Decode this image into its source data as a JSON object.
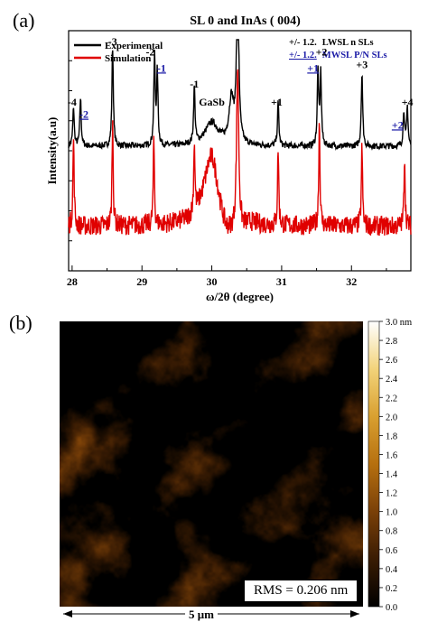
{
  "panel_a": {
    "label": "(a)",
    "chart_data": {
      "type": "line",
      "title": "SL 0  and InAs ( 004)",
      "xlabel": "ω/2θ (degree)",
      "ylabel": "Intensity(a.u)",
      "xlim": [
        27.95,
        32.85
      ],
      "x_ticks": [
        "28",
        "29",
        "30",
        "31",
        "32"
      ],
      "legend": {
        "position": "top-left",
        "entries": [
          "Experimental",
          "Simulation"
        ]
      },
      "key_lines": [
        {
          "prefix": "+/- 1.2.",
          "text": "LWSL n SLs",
          "color": "#000000"
        },
        {
          "prefix": "+/- 1.2.",
          "text": "MWSL P/N SLs",
          "color": "#1a1aa6"
        }
      ],
      "series": [
        {
          "name": "Experimental",
          "color": "#000000",
          "baseline": 0.7,
          "noise": 0.035,
          "peaks": [
            [
              28.02,
              0.22,
              0.012
            ],
            [
              28.12,
              0.27,
              0.012
            ],
            [
              28.58,
              0.56,
              0.012
            ],
            [
              29.18,
              0.5,
              0.012
            ],
            [
              29.22,
              0.4,
              0.012
            ],
            [
              29.75,
              0.32,
              0.012
            ],
            [
              30.0,
              0.13,
              0.12
            ],
            [
              30.37,
              1.0,
              0.018
            ],
            [
              30.28,
              0.25,
              0.04
            ],
            [
              30.95,
              0.24,
              0.012
            ],
            [
              31.52,
              0.42,
              0.012
            ],
            [
              31.56,
              0.4,
              0.012
            ],
            [
              32.15,
              0.42,
              0.012
            ],
            [
              32.75,
              0.2,
              0.012
            ],
            [
              32.8,
              0.22,
              0.012
            ]
          ]
        },
        {
          "name": "Simulation",
          "color": "#e00000",
          "baseline": 0.25,
          "noise": 0.07,
          "peaks": [
            [
              28.02,
              0.5,
              0.01
            ],
            [
              28.58,
              0.58,
              0.01
            ],
            [
              29.17,
              0.48,
              0.01
            ],
            [
              29.75,
              0.4,
              0.01
            ],
            [
              30.0,
              0.44,
              0.13
            ],
            [
              30.37,
              0.92,
              0.018
            ],
            [
              30.95,
              0.44,
              0.01
            ],
            [
              31.54,
              0.6,
              0.01
            ],
            [
              32.15,
              0.45,
              0.01
            ],
            [
              32.76,
              0.4,
              0.01
            ]
          ]
        }
      ],
      "annotations": [
        {
          "text": "-4",
          "x": 28.0,
          "y": 0.93,
          "color": "#000000",
          "underline": false
        },
        {
          "text": "-2",
          "x": 28.17,
          "y": 0.86,
          "color": "#1a1aa6",
          "underline": true
        },
        {
          "text": "-3",
          "x": 28.58,
          "y": 1.27,
          "color": "#000000",
          "underline": false
        },
        {
          "text": "-2",
          "x": 29.12,
          "y": 1.21,
          "color": "#000000",
          "underline": false
        },
        {
          "text": "-1",
          "x": 29.28,
          "y": 1.12,
          "color": "#1a1aa6",
          "underline": true
        },
        {
          "text": "-1",
          "x": 29.75,
          "y": 1.03,
          "color": "#000000",
          "underline": false
        },
        {
          "text": "GaSb",
          "x": 30.0,
          "y": 0.93,
          "color": "#000000",
          "underline": false
        },
        {
          "text": "+1",
          "x": 30.93,
          "y": 0.93,
          "color": "#000000",
          "underline": false
        },
        {
          "text": "+1",
          "x": 31.45,
          "y": 1.12,
          "color": "#1a1aa6",
          "underline": true
        },
        {
          "text": "+2",
          "x": 31.57,
          "y": 1.21,
          "color": "#000000",
          "underline": false
        },
        {
          "text": "+3",
          "x": 32.15,
          "y": 1.14,
          "color": "#000000",
          "underline": false
        },
        {
          "text": "+4",
          "x": 32.8,
          "y": 0.93,
          "color": "#000000",
          "underline": false
        },
        {
          "text": "+2",
          "x": 32.66,
          "y": 0.8,
          "color": "#1a1aa6",
          "underline": true
        }
      ]
    }
  },
  "panel_b": {
    "label": "(b)",
    "colorbar": {
      "min": 0.0,
      "max": 3.0,
      "unit": "nm",
      "ticks": [
        "3.0 nm",
        "2.8",
        "2.6",
        "2.4",
        "2.2",
        "2.0",
        "1.8",
        "1.6",
        "1.4",
        "1.2",
        "1.0",
        "0.8",
        "0.6",
        "0.4",
        "0.2",
        "0.0"
      ],
      "colors": [
        "#000000",
        "#3a1c03",
        "#7a4008",
        "#b6700f",
        "#d9a030",
        "#f2d37a",
        "#ffffff"
      ]
    },
    "rms": "RMS = 0.206 nm",
    "scale_label": "5 μm"
  }
}
